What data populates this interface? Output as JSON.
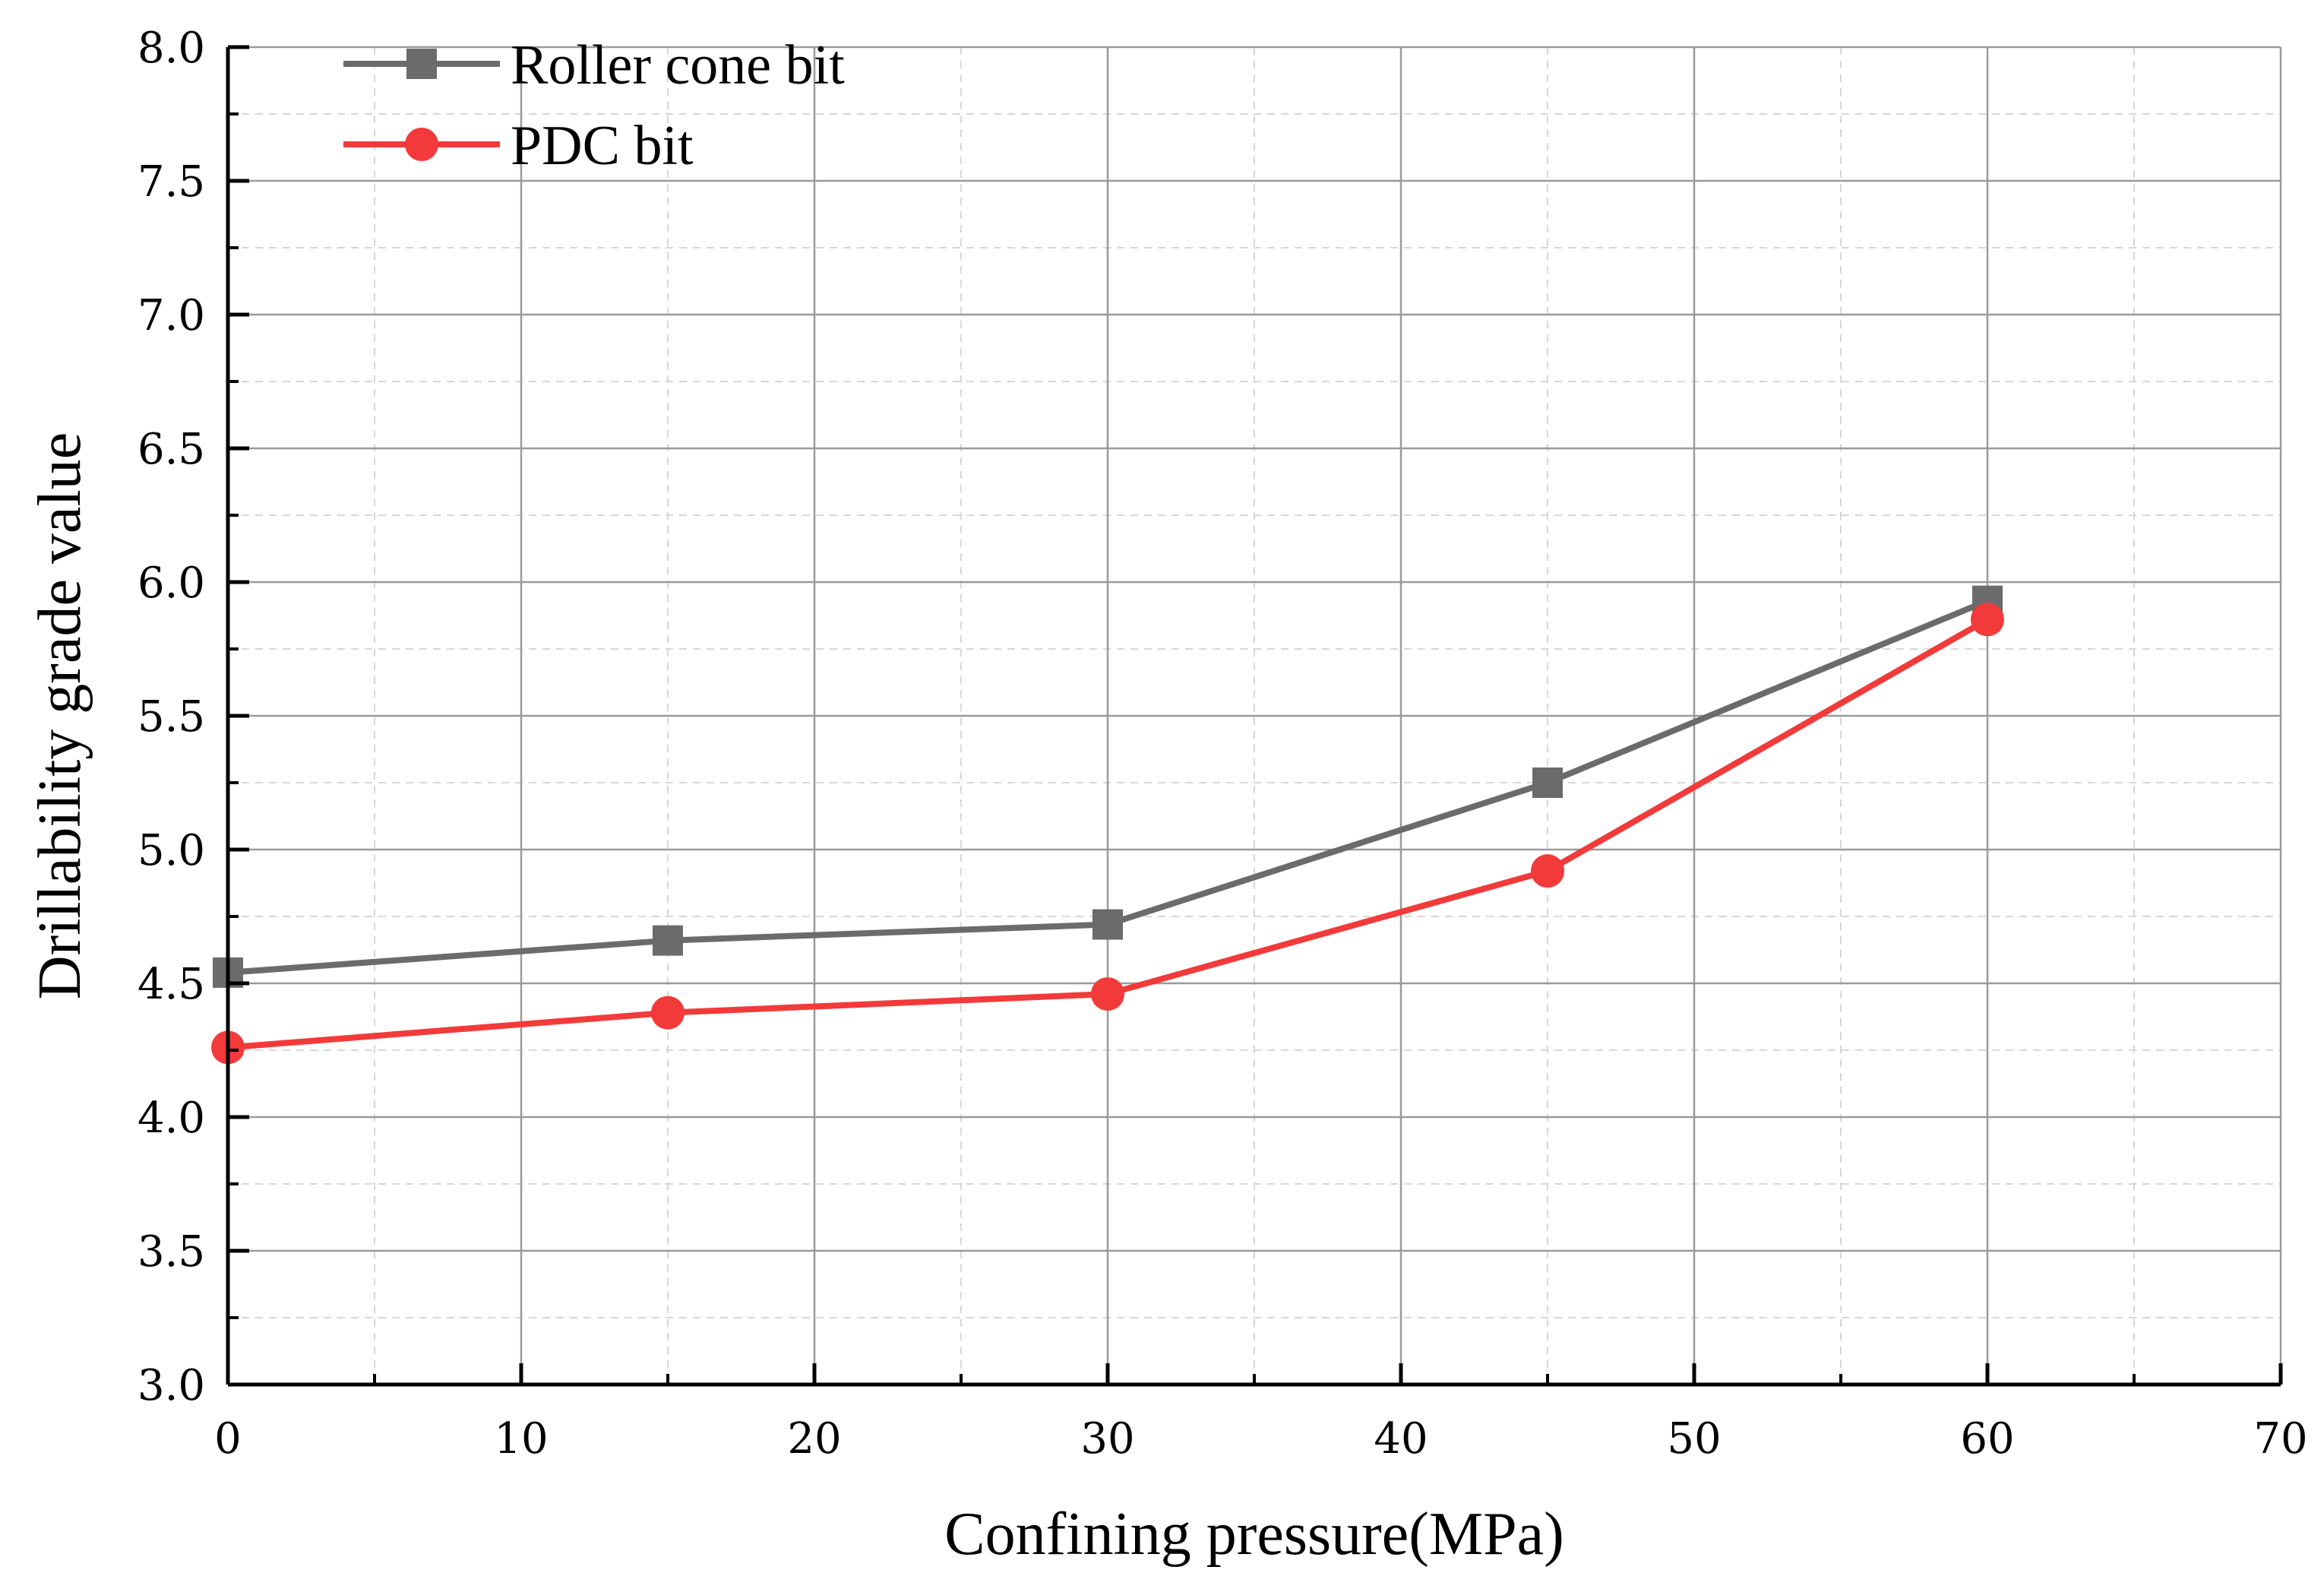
{
  "chart_data": {
    "type": "line",
    "title": "",
    "xlabel": "Confining pressure(MPa)",
    "ylabel": "Drillability grade value",
    "xlim": [
      0,
      70
    ],
    "ylim": [
      3.0,
      8.0
    ],
    "x_ticks": [
      0,
      10,
      20,
      30,
      40,
      50,
      60,
      70
    ],
    "x_tick_labels": [
      "0",
      "10",
      "20",
      "30",
      "40",
      "50",
      "60",
      "70"
    ],
    "y_ticks": [
      3.0,
      3.5,
      4.0,
      4.5,
      5.0,
      5.5,
      6.0,
      6.5,
      7.0,
      7.5,
      8.0
    ],
    "y_tick_labels": [
      "3.0",
      "3.5",
      "4.0",
      "4.5",
      "5.0",
      "5.5",
      "6.0",
      "6.5",
      "7.0",
      "7.5",
      "8.0"
    ],
    "grid": true,
    "legend_position": "top-left",
    "series": [
      {
        "name": "Roller cone bit",
        "color": "#6b6b6b",
        "marker": "square",
        "x": [
          0,
          15,
          30,
          45,
          60
        ],
        "values": [
          4.54,
          4.66,
          4.72,
          5.25,
          5.93
        ]
      },
      {
        "name": "PDC bit",
        "color": "#f23a3a",
        "marker": "circle",
        "x": [
          0,
          15,
          30,
          45,
          60
        ],
        "values": [
          4.26,
          4.39,
          4.46,
          4.92,
          5.86
        ]
      }
    ]
  }
}
